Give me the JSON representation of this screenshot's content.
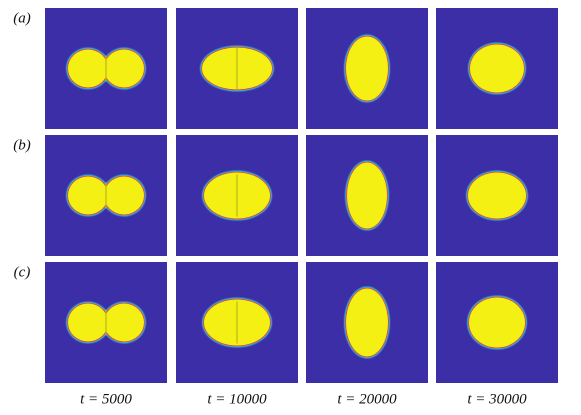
{
  "figure": {
    "row_labels": [
      "(a)",
      "(b)",
      "(c)"
    ],
    "column_labels": [
      "t = 5000",
      "t = 10000",
      "t = 20000",
      "t = 30000"
    ]
  }
}
